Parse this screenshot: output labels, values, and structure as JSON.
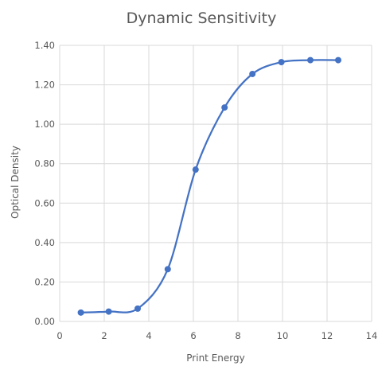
{
  "chart_data": {
    "type": "scatter",
    "title": "Dynamic Sensitivity",
    "xlabel": "Print Energy",
    "ylabel": "Optical Density",
    "xlim": [
      0,
      14
    ],
    "ylim": [
      0,
      1.4
    ],
    "x_ticks": [
      0,
      2,
      4,
      6,
      8,
      10,
      12,
      14
    ],
    "y_ticks": [
      0.0,
      0.2,
      0.4,
      0.6,
      0.8,
      1.0,
      1.2,
      1.4
    ],
    "x_tick_labels": [
      "0",
      "2",
      "4",
      "6",
      "8",
      "10",
      "12",
      "14"
    ],
    "y_tick_labels": [
      "0.00",
      "0.20",
      "0.40",
      "0.60",
      "0.80",
      "1.00",
      "1.20",
      "1.40"
    ],
    "grid": true,
    "legend": "none",
    "line_style": "smoothed",
    "series": [
      {
        "x": [
          0.95,
          2.2,
          3.5,
          4.85,
          6.1,
          7.4,
          8.65,
          9.95,
          11.25,
          12.5
        ],
        "y": [
          0.045,
          0.05,
          0.065,
          0.265,
          0.77,
          1.085,
          1.255,
          1.315,
          1.325,
          1.325
        ],
        "color": "#4472C4"
      }
    ]
  },
  "colors": {
    "series": "#4472C4",
    "grid": "#D9D9D9",
    "axis_line": "#D9D9D9",
    "text": "#595959"
  }
}
